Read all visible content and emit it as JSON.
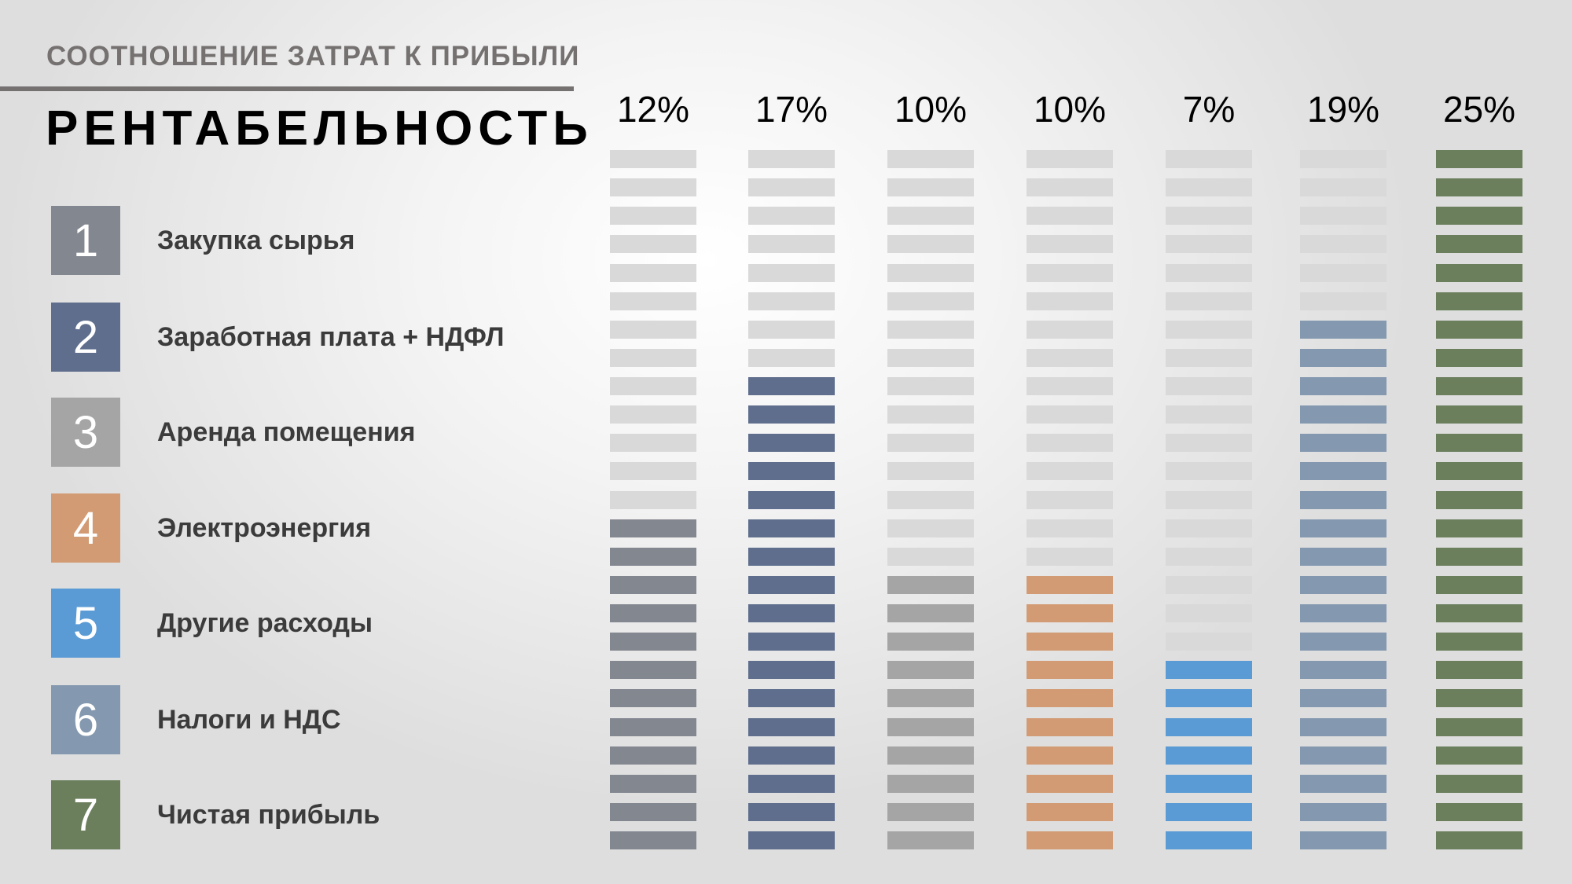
{
  "header": {
    "subtitle": "СООТНОШЕНИЕ ЗАТРАТ К ПРИБЫЛИ",
    "title": "РЕНТАБЕЛЬНОСТЬ"
  },
  "legend": [
    {
      "number": "1",
      "label": "Закупка сырья",
      "color": "#838790"
    },
    {
      "number": "2",
      "label": "Заработная плата + НДФЛ",
      "color": "#5f6e8d"
    },
    {
      "number": "3",
      "label": "Аренда помещения",
      "color": "#a5a5a5"
    },
    {
      "number": "4",
      "label": "Электроэнергия",
      "color": "#d29b74"
    },
    {
      "number": "5",
      "label": "Другие расходы",
      "color": "#5b9bd5"
    },
    {
      "number": "6",
      "label": "Налоги и НДС",
      "color": "#8499b0"
    },
    {
      "number": "7",
      "label": "Чистая прибыль",
      "color": "#6b7f5d"
    }
  ],
  "chart_data": {
    "type": "bar",
    "title": "РЕНТАБЕЛЬНОСТЬ",
    "subtitle": "СООТНОШЕНИЕ ЗАТРАТ К ПРИБЫЛИ",
    "categories": [
      "Закупка сырья",
      "Заработная плата + НДФЛ",
      "Аренда помещения",
      "Электроэнергия",
      "Другие расходы",
      "Налоги и НДС",
      "Чистая прибыль"
    ],
    "values": [
      12,
      17,
      10,
      10,
      7,
      19,
      25
    ],
    "labels": [
      "12%",
      "17%",
      "10%",
      "10%",
      "7%",
      "19%",
      "25%"
    ],
    "unit_per_segment": 1,
    "ylim": [
      0,
      25
    ],
    "empty_color": "#d9d9d9"
  }
}
